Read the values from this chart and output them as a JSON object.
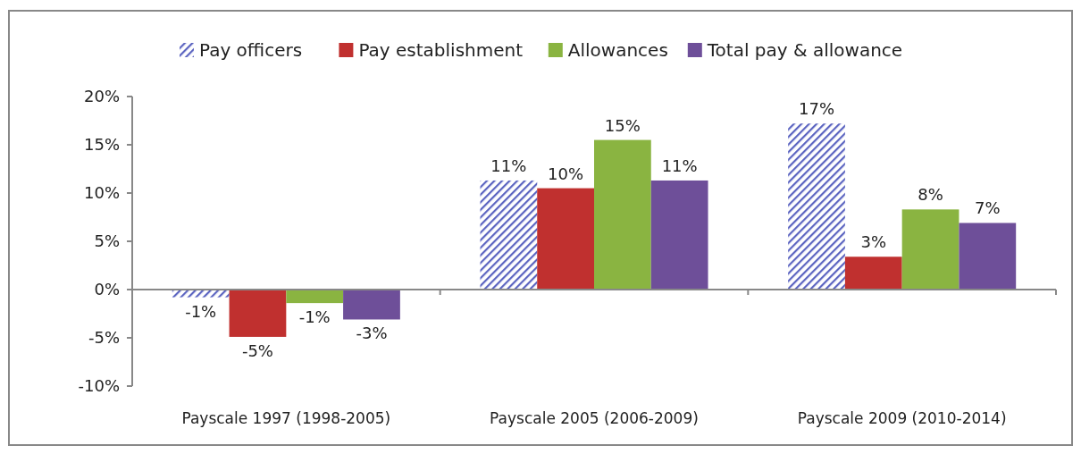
{
  "chart_data": {
    "type": "bar",
    "categories": [
      "Payscale 1997 (1998-2005)",
      "Payscale 2005 (2006-2009)",
      "Payscale 2009 (2010-2014)"
    ],
    "series": [
      {
        "name": "Pay officers",
        "color": "#5a63c0",
        "values": [
          -0.8,
          11.3,
          17.2
        ],
        "value_labels": [
          "-1%",
          "11%",
          "17%"
        ]
      },
      {
        "name": "Pay establishment",
        "color": "#c0302f",
        "values": [
          -4.9,
          10.5,
          3.4
        ],
        "value_labels": [
          "-5%",
          "10%",
          "3%"
        ]
      },
      {
        "name": "Allowances",
        "color": "#8ab441",
        "values": [
          -1.4,
          15.5,
          8.3
        ],
        "value_labels": [
          "-1%",
          "15%",
          "8%"
        ]
      },
      {
        "name": "Total pay & allowance",
        "color": "#6e4f99",
        "values": [
          -3.1,
          11.3,
          6.9
        ],
        "value_labels": [
          "-3%",
          "11%",
          "7%"
        ]
      }
    ],
    "ylim": [
      -10,
      20
    ],
    "yticks": [
      {
        "value": -10,
        "label": "-10%"
      },
      {
        "value": -5,
        "label": "-5%"
      },
      {
        "value": 0,
        "label": "0%"
      },
      {
        "value": 5,
        "label": "5%"
      },
      {
        "value": 10,
        "label": "10%"
      },
      {
        "value": 15,
        "label": "15%"
      },
      {
        "value": 20,
        "label": "20%"
      }
    ],
    "legend": "top"
  }
}
